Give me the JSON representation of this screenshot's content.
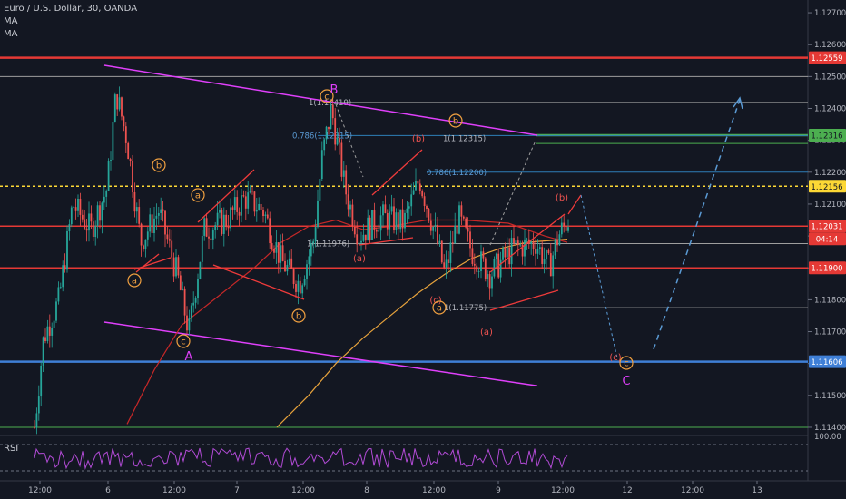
{
  "header": {
    "symbol": "Euro / U.S. Dollar, 30, OANDA",
    "indicators": [
      "MA",
      "MA"
    ],
    "rsi_label": "RSI"
  },
  "price_axis": {
    "ticks": [
      "1.12700",
      "1.12600",
      "1.12500",
      "1.12400",
      "1.12300",
      "1.12200",
      "1.12100",
      "1.12000",
      "1.11900",
      "1.11800",
      "1.11700",
      "1.11600",
      "1.11500",
      "1.11400"
    ],
    "rsi_tick": "100.00"
  },
  "time_axis": {
    "ticks": [
      "12:00",
      "6",
      "12:00",
      "7",
      "12:00",
      "8",
      "12:00",
      "9",
      "12:00",
      "12",
      "12:00",
      "13"
    ]
  },
  "price_badges": [
    {
      "text": "1.12559",
      "color": "#e53935"
    },
    {
      "text": "1.12316",
      "color": "#4caf50"
    },
    {
      "text": "1.12156",
      "color": "#fdd835"
    },
    {
      "text": "1.12031",
      "color": "#e53935"
    },
    {
      "text": "04:14",
      "color": "#e53935"
    },
    {
      "text": "1.11900",
      "color": "#e53935"
    },
    {
      "text": "1.11606",
      "color": "#3f7fd6"
    }
  ],
  "fib_labels": [
    {
      "text": "1(1.12419)"
    },
    {
      "text": "0.786(1.12315)"
    },
    {
      "text": "1(1.12315)"
    },
    {
      "text": "0.786(1.12200)"
    },
    {
      "text": "1(1.11976)"
    },
    {
      "text": "1(1.11775)"
    }
  ],
  "wave_labels": [
    {
      "text": "a",
      "circled": true,
      "color": "#f0a040"
    },
    {
      "text": "b",
      "circled": true,
      "color": "#f0a040"
    },
    {
      "text": "a",
      "circled": true,
      "color": "#f0a040"
    },
    {
      "text": "c",
      "circled": true,
      "color": "#f0a040"
    },
    {
      "text": "A",
      "circled": false,
      "color": "#e040fb"
    },
    {
      "text": "b",
      "circled": true,
      "color": "#f0a040"
    },
    {
      "text": "c",
      "circled": true,
      "color": "#f0a040"
    },
    {
      "text": "B",
      "circled": false,
      "color": "#e040fb"
    },
    {
      "text": "b",
      "circled": true,
      "color": "#f0a040"
    },
    {
      "text": "(a)",
      "circled": false,
      "color": "#ef5350"
    },
    {
      "text": "(b)",
      "circled": false,
      "color": "#ef5350"
    },
    {
      "text": "(c)",
      "circled": false,
      "color": "#ef5350"
    },
    {
      "text": "a",
      "circled": true,
      "color": "#f0a040"
    },
    {
      "text": "(a)",
      "circled": false,
      "color": "#ef5350"
    },
    {
      "text": "(b)",
      "circled": false,
      "color": "#ef5350"
    },
    {
      "text": "(c)",
      "circled": false,
      "color": "#ef5350"
    },
    {
      "text": "c",
      "circled": true,
      "color": "#f0a040"
    },
    {
      "text": "C",
      "circled": false,
      "color": "#e040fb"
    }
  ],
  "chart_data": {
    "type": "candlestick",
    "symbol": "EURUSD",
    "timeframe": "30",
    "y_range": [
      1.1138,
      1.1274
    ],
    "horizontal_levels": [
      {
        "price": 1.12559,
        "color": "#e53935"
      },
      {
        "price": 1.125,
        "color": "#9e9e9e"
      },
      {
        "price": 1.12419,
        "color": "#9e9e9e"
      },
      {
        "price": 1.12316,
        "color": "#4caf50"
      },
      {
        "price": 1.12315,
        "color": "#2e7fb8"
      },
      {
        "price": 1.122,
        "color": "#2e7fb8"
      },
      {
        "price": 1.12156,
        "color": "#fdd835"
      },
      {
        "price": 1.12031,
        "color": "#e53935"
      },
      {
        "price": 1.11976,
        "color": "#9e9e9e"
      },
      {
        "price": 1.119,
        "color": "#e53935"
      },
      {
        "price": 1.11775,
        "color": "#9e9e9e"
      },
      {
        "price": 1.11606,
        "color": "#3f7fd6"
      },
      {
        "price": 1.114,
        "color": "#4caf50"
      }
    ],
    "last_price": 1.12031,
    "rsi_level": 100.0
  }
}
